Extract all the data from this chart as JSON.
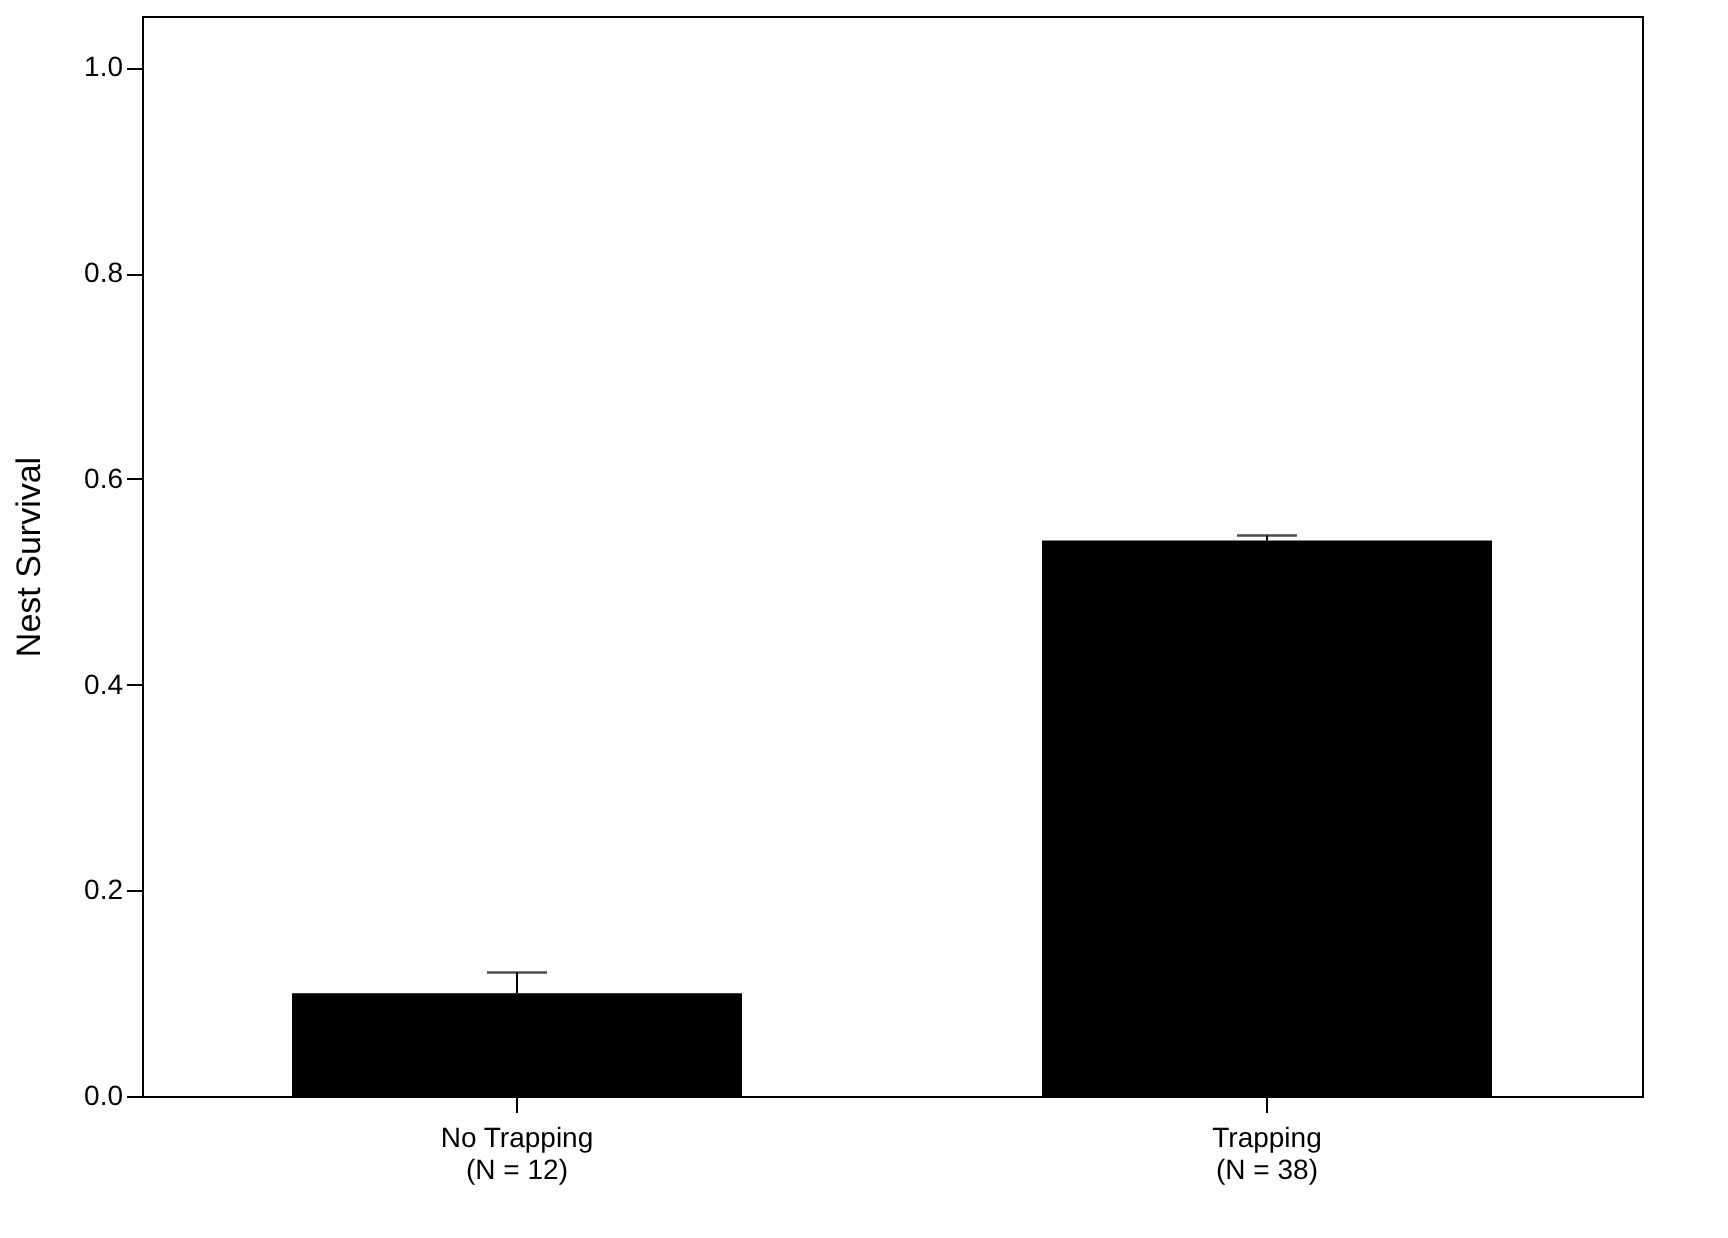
{
  "chart_data": {
    "type": "bar",
    "ylabel": "Nest Survival",
    "categories": [
      "No Trapping\n(N = 12)",
      "Trapping\n(N = 38)"
    ],
    "values": [
      0.1,
      0.54
    ],
    "errors": [
      [
        0.1,
        0.12
      ],
      [
        0.54,
        0.545
      ]
    ],
    "color": "#000000",
    "ylim": [
      0,
      1.05
    ],
    "yticks": [
      {
        "value": 0,
        "label": "0.0"
      },
      {
        "value": 0.2,
        "label": "0.2"
      },
      {
        "value": 0.4,
        "label": "0.4"
      },
      {
        "value": 0.6,
        "label": "0.6"
      },
      {
        "value": 0.8,
        "label": "0.8"
      },
      {
        "value": 1.0,
        "label": "1.0"
      }
    ],
    "grid": false
  }
}
